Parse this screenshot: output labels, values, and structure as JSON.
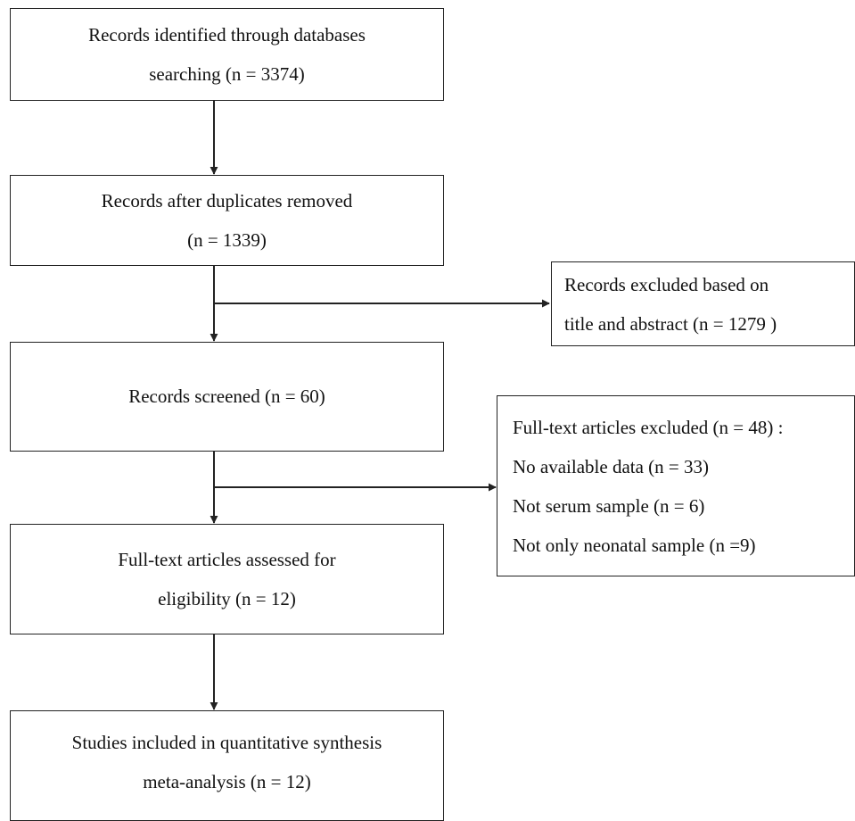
{
  "diagram": {
    "identified": {
      "line1": "Records identified through databases",
      "line2": "searching (n = 3374)"
    },
    "duplicates_removed": {
      "line1": "Records after duplicates removed",
      "line2": "(n = 1339)"
    },
    "excluded_title_abstract": {
      "line1": "Records excluded based on",
      "line2": "title and abstract (n = 1279 )"
    },
    "screened": {
      "line1": "Records screened (n = 60)"
    },
    "fulltext_excluded": {
      "line1": "Full-text articles excluded (n = 48) :",
      "line2": "No available data (n = 33)",
      "line3": "Not serum sample (n = 6)",
      "line4": "Not only neonatal sample (n =9)"
    },
    "assessed": {
      "line1": "Full-text articles assessed for",
      "line2": "eligibility (n = 12)"
    },
    "included": {
      "line1": "Studies included in quantitative synthesis",
      "line2": "meta-analysis (n = 12)"
    }
  }
}
